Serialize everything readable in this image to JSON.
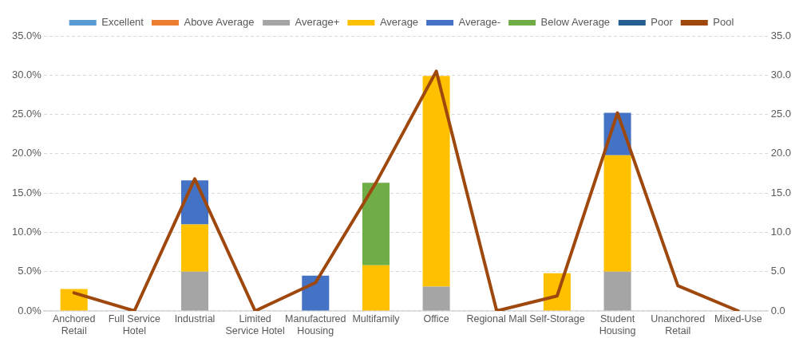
{
  "chart_data": {
    "type": "bar",
    "stacked": true,
    "categories": [
      "Anchored Retail",
      "Full Service Hotel",
      "Industrial",
      "Limited Service Hotel",
      "Manufactured Housing",
      "Multifamily",
      "Office",
      "Regional Mall",
      "Self-Storage",
      "Student Housing",
      "Unanchored Retail",
      "Mixed-Use"
    ],
    "series": [
      {
        "name": "Excellent",
        "color": "#5b9bd5",
        "values": [
          0,
          0,
          0,
          0,
          0,
          0,
          0,
          0,
          0,
          0,
          0,
          0
        ]
      },
      {
        "name": "Above Average",
        "color": "#ed7d31",
        "values": [
          0,
          0,
          0,
          0,
          0,
          0,
          0,
          0,
          0,
          0,
          0,
          0
        ]
      },
      {
        "name": "Average+",
        "color": "#a5a5a5",
        "values": [
          0,
          0,
          5.0,
          0,
          0,
          0,
          3.1,
          0,
          0,
          5.0,
          0,
          0
        ]
      },
      {
        "name": "Average",
        "color": "#ffc000",
        "values": [
          2.8,
          0,
          6.0,
          0,
          0,
          5.8,
          26.8,
          0,
          4.8,
          14.8,
          0,
          0
        ]
      },
      {
        "name": "Average-",
        "color": "#4472c4",
        "values": [
          0,
          0,
          5.6,
          0,
          4.5,
          0,
          0,
          0,
          0,
          5.4,
          0,
          0
        ]
      },
      {
        "name": "Below Average",
        "color": "#70ad47",
        "values": [
          0,
          0,
          0,
          0,
          0,
          10.5,
          0,
          0,
          0,
          0,
          0,
          0
        ]
      },
      {
        "name": "Poor",
        "color": "#255e91",
        "values": [
          0,
          0,
          0,
          0,
          0,
          0,
          0,
          0,
          0,
          0,
          0,
          0
        ]
      },
      {
        "name": "Pool",
        "type": "line",
        "axis": "y2",
        "color": "#9e480e",
        "values": [
          2.3,
          0,
          16.8,
          0,
          3.6,
          16.3,
          30.5,
          0,
          1.9,
          25.2,
          3.2,
          0
        ]
      }
    ],
    "ylim": [
      0,
      35
    ],
    "yticks": [
      {
        "value": 0,
        "label": "0.0%"
      },
      {
        "value": 5,
        "label": "5.0%"
      },
      {
        "value": 10,
        "label": "10.0%"
      },
      {
        "value": 15,
        "label": "15.0%"
      },
      {
        "value": 20,
        "label": "20.0%"
      },
      {
        "value": 25,
        "label": "25.0%"
      },
      {
        "value": 30,
        "label": "30.0%"
      },
      {
        "value": 35,
        "label": "35.0%"
      }
    ],
    "y2lim": [
      0,
      35
    ],
    "y2ticks": [
      {
        "value": 0,
        "label": "0.0"
      },
      {
        "value": 5,
        "label": "5.0"
      },
      {
        "value": 10,
        "label": "10.0"
      },
      {
        "value": 15,
        "label": "15.0"
      },
      {
        "value": 20,
        "label": "20.0"
      },
      {
        "value": 25,
        "label": "25.0"
      },
      {
        "value": 30,
        "label": "30.0"
      },
      {
        "value": 35,
        "label": "35.0"
      }
    ],
    "grid": "y",
    "legend": "top",
    "marker": "none",
    "line_style": "solid"
  }
}
